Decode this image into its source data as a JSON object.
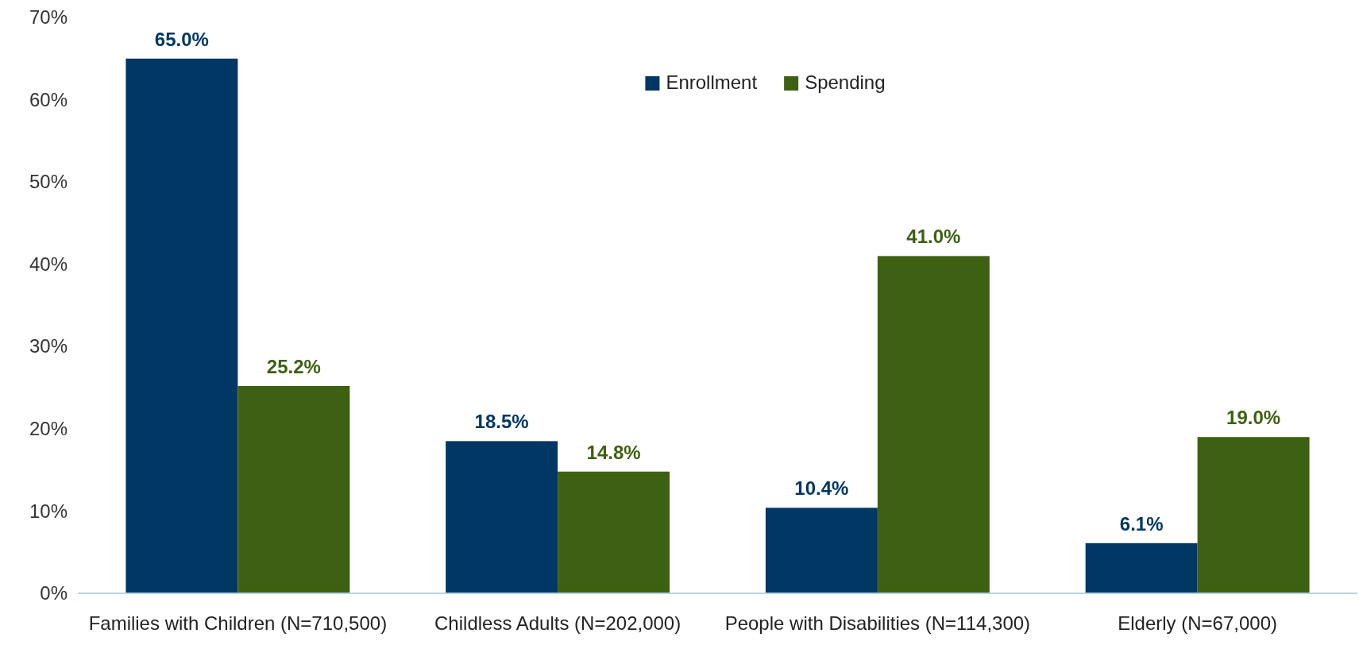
{
  "chart_data": {
    "type": "bar",
    "categories": [
      "Families with Children (N=710,500)",
      "Childless Adults (N=202,000)",
      "People with Disabilities (N=114,300)",
      "Elderly (N=67,000)"
    ],
    "series": [
      {
        "name": "Enrollment",
        "color": "#003764",
        "values": [
          65.0,
          18.5,
          10.4,
          6.1
        ]
      },
      {
        "name": "Spending",
        "color": "#3e6012",
        "values": [
          25.2,
          14.8,
          41.0,
          19.0
        ]
      }
    ],
    "ylim": [
      0,
      70
    ],
    "yticks": [
      {
        "value": 0,
        "label": "0%"
      },
      {
        "value": 10,
        "label": "10%"
      },
      {
        "value": 20,
        "label": "20%"
      },
      {
        "value": 30,
        "label": "30%"
      },
      {
        "value": 40,
        "label": "40%"
      },
      {
        "value": 50,
        "label": "50%"
      },
      {
        "value": 60,
        "label": "60%"
      },
      {
        "value": 70,
        "label": "70%"
      }
    ],
    "value_labels": [
      [
        "65.0%",
        "18.5%",
        "10.4%",
        "6.1%"
      ],
      [
        "25.2%",
        "14.8%",
        "41.0%",
        "19.0%"
      ]
    ],
    "legend": "top",
    "grid": false
  }
}
